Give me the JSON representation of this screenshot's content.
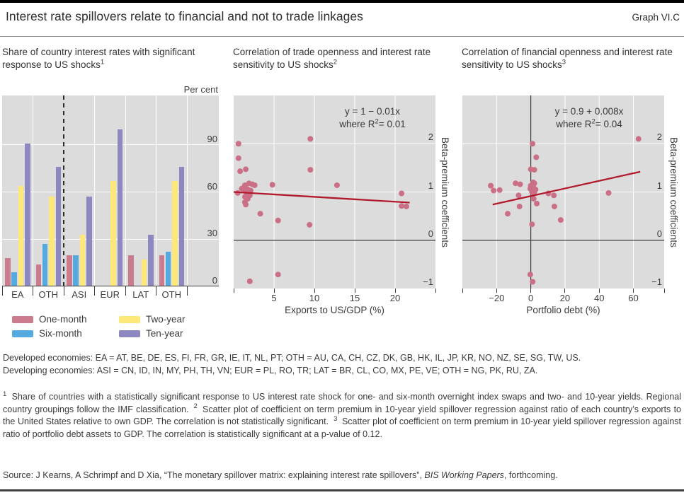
{
  "header": {
    "title": "Interest rate spillovers relate to financial and not to trade linkages",
    "graph_label": "Graph VI.C"
  },
  "panel1": {
    "title_line": "Share of country interest rates with significant response to US shocks",
    "sup": "1",
    "unit": "Per cent",
    "region1_line1": "Developed",
    "region1_line2": "economies",
    "region2_line1": "Developing",
    "region2_line2": "economies"
  },
  "panel2": {
    "title_line": "Correlation of trade openness and interest rate sensitivity to US shocks",
    "sup": "2",
    "eq": "y = 1 − 0.01x",
    "r2_pre": "where R",
    "r2_sup": "2",
    "r2_post": "= 0.01",
    "xlabel": "Exports to US/GDP (%)",
    "ylabel": "Beta-premium coefficients"
  },
  "panel3": {
    "title_line": "Correlation of financial openness and interest rate sensitivity to US shocks",
    "sup": "3",
    "eq": "y = 0.9 + 0.008x",
    "r2_pre": "where R",
    "r2_sup": "2",
    "r2_post": "= 0.04",
    "xlabel": "Portfolio debt (%)",
    "ylabel": "Beta-premium coefficients"
  },
  "legend": {
    "items": [
      {
        "label": "One-month",
        "color": "#cb7b8e"
      },
      {
        "label": "Six-month",
        "color": "#54aade"
      },
      {
        "label": "Two-year",
        "color": "#fde879"
      },
      {
        "label": "Ten-year",
        "color": "#8d89c0"
      }
    ]
  },
  "colors": {
    "panel_bg": "#dcdcdc",
    "gridline": "#ffffff",
    "axis_line": "#3d3d3d",
    "point": "#ca6f85",
    "trend": "#b11a2c"
  },
  "chart_data": [
    {
      "type": "bar",
      "title": "Share of country interest rates with significant response to US shocks",
      "unit": "Per cent",
      "categories": [
        "EA",
        "OTH",
        "ASI",
        "EUR",
        "LAT",
        "OTH"
      ],
      "series": [
        {
          "name": "One-month",
          "color": "#cb7b8e",
          "values": [
            18,
            14,
            20,
            0,
            20,
            20
          ]
        },
        {
          "name": "Six-month",
          "color": "#54aade",
          "values": [
            9,
            27,
            20,
            0,
            0,
            22
          ]
        },
        {
          "name": "Two-year",
          "color": "#fde879",
          "values": [
            64,
            57,
            33,
            67,
            17,
            67
          ]
        },
        {
          "name": "Ten-year",
          "color": "#8d89c0",
          "values": [
            91,
            76,
            57,
            100,
            33,
            76
          ]
        }
      ],
      "yticks": [
        0,
        30,
        60,
        90
      ],
      "ylim": [
        0,
        121
      ],
      "separator_after": 2,
      "region_groups": [
        "Developed economies",
        "Developing economies"
      ]
    },
    {
      "type": "scatter",
      "xlabel": "Exports to US/GDP (%)",
      "ylabel": "Beta-premium coefficients",
      "equation": "y = 1 − 0.01x",
      "r2": "where R² = 0.01",
      "xlim": [
        0,
        25
      ],
      "ylim": [
        -1,
        3
      ],
      "xticks": [
        5,
        10,
        15,
        20
      ],
      "yticks": [
        -1,
        0,
        1,
        2
      ],
      "zero_hline": true,
      "zero_vline": false,
      "point_color": "#ca6f85",
      "trend_color": "#b11a2c",
      "trend": [
        [
          0,
          1.0
        ],
        [
          21.8,
          0.78
        ]
      ],
      "points": [
        [
          0.6,
          2.0
        ],
        [
          0.6,
          1.7
        ],
        [
          0.8,
          1.43
        ],
        [
          1.5,
          1.47
        ],
        [
          9.5,
          2.1
        ],
        [
          9.5,
          1.46
        ],
        [
          1.4,
          1.14
        ],
        [
          1.9,
          1.18
        ],
        [
          2.3,
          1.16
        ],
        [
          2.6,
          1.14
        ],
        [
          1.0,
          1.07
        ],
        [
          1.25,
          1.03
        ],
        [
          1.7,
          1.06
        ],
        [
          2.1,
          1.03
        ],
        [
          0.5,
          0.98
        ],
        [
          1.6,
          0.95
        ],
        [
          2.0,
          0.93
        ],
        [
          1.4,
          0.9
        ],
        [
          1.75,
          0.86
        ],
        [
          1.4,
          0.79
        ],
        [
          4.8,
          1.15
        ],
        [
          12.8,
          1.14
        ],
        [
          20.8,
          0.97
        ],
        [
          20.8,
          0.71
        ],
        [
          21.4,
          0.7
        ],
        [
          1.5,
          0.74
        ],
        [
          3.3,
          0.55
        ],
        [
          5.5,
          0.41
        ],
        [
          9.4,
          0.32
        ],
        [
          5.5,
          -0.71
        ],
        [
          2.0,
          -0.85
        ]
      ]
    },
    {
      "type": "scatter",
      "xlabel": "Portfolio debt (%)",
      "ylabel": "Beta-premium coefficients",
      "equation": "y = 0.9 + 0.008x",
      "r2": "where R² = 0.04",
      "xlim": [
        -40,
        78
      ],
      "ylim": [
        -1,
        3
      ],
      "xticks": [
        -20,
        0,
        20,
        40,
        60
      ],
      "yticks": [
        -1,
        0,
        1,
        2
      ],
      "zero_hline": true,
      "zero_vline": true,
      "point_color": "#ca6f85",
      "trend_color": "#b11a2c",
      "trend": [
        [
          -22.3,
          0.74
        ],
        [
          64,
          1.42
        ]
      ],
      "points": [
        [
          63,
          2.1
        ],
        [
          1,
          2.0
        ],
        [
          3.2,
          1.72
        ],
        [
          0,
          1.47
        ],
        [
          2.1,
          1.46
        ],
        [
          1.4,
          1.2
        ],
        [
          2.1,
          1.18
        ],
        [
          0,
          1.13
        ],
        [
          1.4,
          1.12
        ],
        [
          -0.3,
          1.07
        ],
        [
          1.7,
          1.06
        ],
        [
          2.8,
          1.05
        ],
        [
          0.7,
          1.0
        ],
        [
          2.1,
          0.99
        ],
        [
          -8.9,
          1.18
        ],
        [
          -6.2,
          1.16
        ],
        [
          -23.4,
          1.13
        ],
        [
          -21.7,
          1.03
        ],
        [
          -18.2,
          1.04
        ],
        [
          -7.1,
          0.93
        ],
        [
          10.3,
          0.97
        ],
        [
          13.5,
          0.93
        ],
        [
          45.5,
          0.98
        ],
        [
          1.7,
          0.86
        ],
        [
          3.5,
          0.76
        ],
        [
          -6.6,
          0.7
        ],
        [
          13.8,
          0.7
        ],
        [
          -13.5,
          0.55
        ],
        [
          17.5,
          0.42
        ],
        [
          0.7,
          0.33
        ],
        [
          -0.3,
          -0.71
        ],
        [
          1.1,
          -0.86
        ]
      ]
    }
  ],
  "footnotes": {
    "countries_line1": "Developed economies: EA = AT, BE, DE, ES, FI, FR, GR, IE, IT, NL, PT; OTH = AU, CA, CH, CZ, DK, GB, HK, IL, JP, KR, NO, NZ, SE, SG, TW, US.",
    "countries_line2": "Developing economies: ASI = CN, ID, IN, MY, PH, TH, VN; EUR = PL, RO, TR; LAT = BR, CL, CO, MX, PE, VE; OTH = NG, PK, RU, ZA.",
    "segments": [
      {
        "sup": "1",
        "text": " Share of countries with a statistically significant response to US interest rate shock for one- and six-month overnight index swaps and two- and 10-year yields. Regional country groupings follow the IMF classification."
      },
      {
        "sup": "2",
        "text": " Scatter plot of coefficient on term premium in 10-year yield spillover regression against ratio of each country’s exports to the United States relative to own GDP. The correlation is not statistically significant."
      },
      {
        "sup": "3",
        "text": " Scatter plot of coefficient on term premium in 10-year yield spillover regression against ratio of portfolio debt assets to GDP. The correlation is statistically significant at a p-value of 0.12."
      }
    ],
    "source_pre": "Source: J Kearns, A Schrimpf and D Xia, “The monetary spillover matrix: explaining interest rate spillovers”, ",
    "source_italic": "BIS Working Papers",
    "source_post": ", forthcoming."
  }
}
